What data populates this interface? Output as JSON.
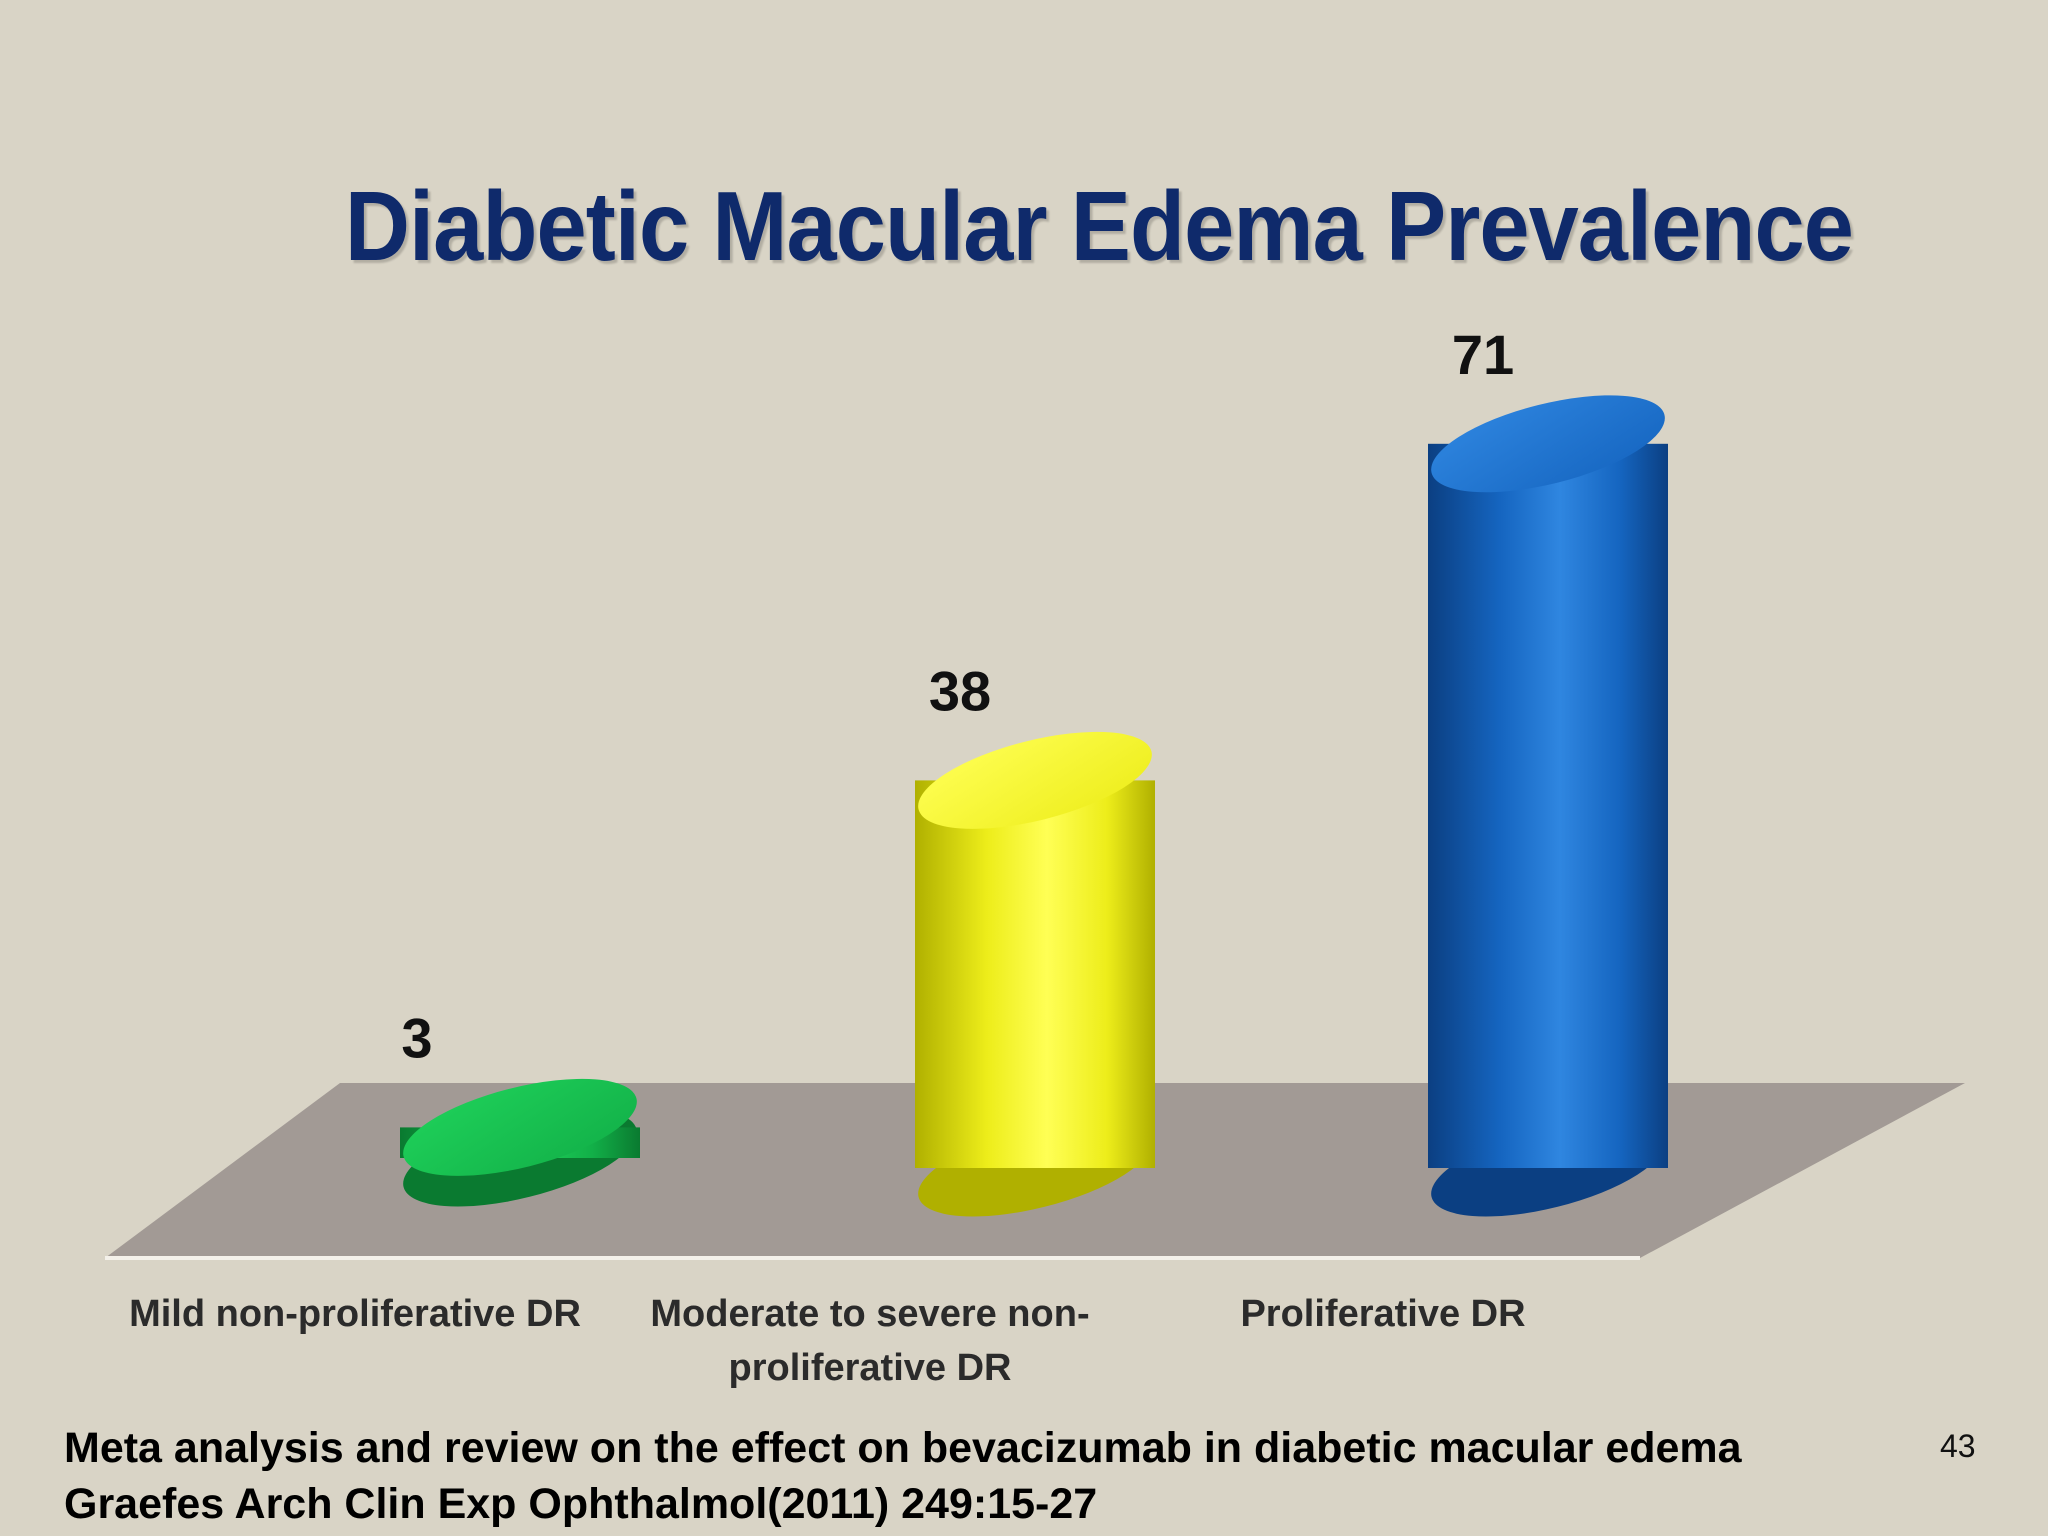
{
  "slide": {
    "title": "Diabetic Macular Edema Prevalence",
    "citation_line1": "Meta analysis  and review on the effect on bevacizumab in diabetic macular edema",
    "citation_line2": "Graefes Arch Clin Exp Ophthalmol(2011) 249:15-27",
    "page_number": "43"
  },
  "chart_data": {
    "type": "bar",
    "style": "3d-cylinder",
    "title": "Diabetic Macular Edema Prevalence",
    "xlabel": "",
    "ylabel": "",
    "ylim": [
      0,
      80
    ],
    "grid": false,
    "legend": "none",
    "categories": [
      [
        "Mild non-proliferative DR"
      ],
      [
        "Moderate to severe non-",
        "proliferative DR"
      ],
      [
        "Proliferative DR"
      ]
    ],
    "values": [
      3,
      38,
      71
    ],
    "data_labels": [
      "3",
      "38",
      "71"
    ],
    "colors": [
      {
        "light": "#1fd15a",
        "mid": "#12b048",
        "dark": "#0a7a30"
      },
      {
        "light": "#ffff55",
        "mid": "#eded1a",
        "dark": "#b0b000"
      },
      {
        "light": "#2f86e0",
        "mid": "#1565c0",
        "dark": "#0b3f82"
      }
    ],
    "floor_color": "#a29a95"
  }
}
